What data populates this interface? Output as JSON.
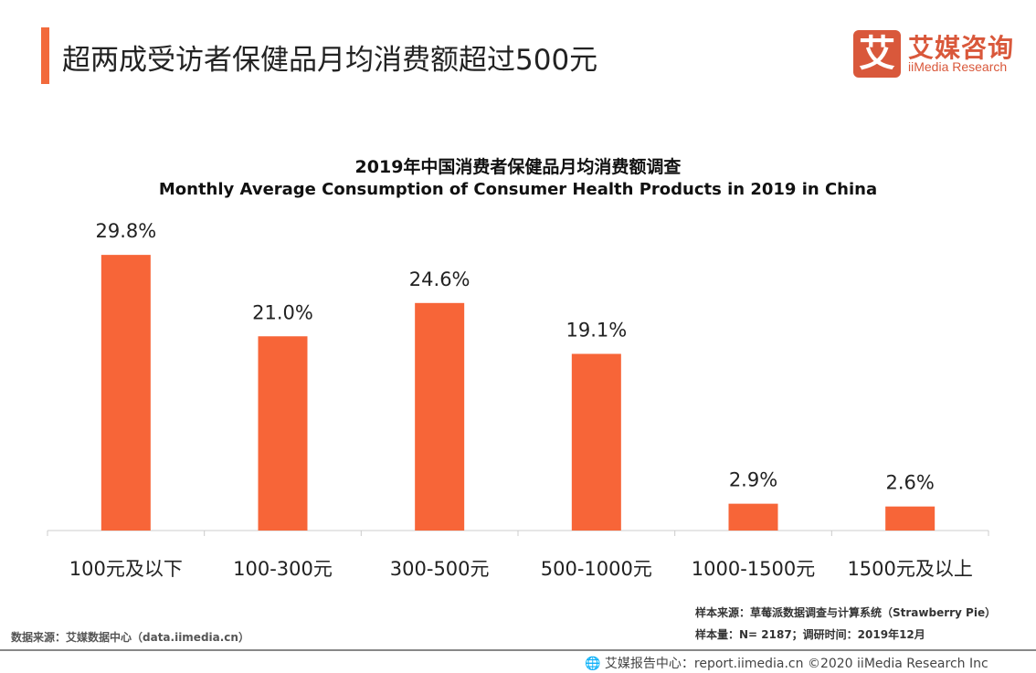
{
  "header": {
    "title": "超两成受访者保健品月均消费额超过500元",
    "accent_color": "#f26a3c"
  },
  "logo": {
    "mark": "艾",
    "name_cn": "艾媒咨询",
    "name_en": "iiMedia Research",
    "color": "#d9583b"
  },
  "chart_data": {
    "type": "bar",
    "title": "2019年中国消费者保健品月均消费额调查",
    "subtitle": "Monthly Average Consumption  of Consumer Health Products in 2019 in China",
    "categories": [
      "100元及以下",
      "100-300元",
      "300-500元",
      "500-1000元",
      "1000-1500元",
      "1500元及以上"
    ],
    "values": [
      29.8,
      21.0,
      24.6,
      19.1,
      2.9,
      2.6
    ],
    "labels": [
      "29.8%",
      "21.0%",
      "24.6%",
      "19.1%",
      "2.9%",
      "2.6%"
    ],
    "unit": "%",
    "ylim": [
      0,
      32
    ],
    "grid": false,
    "bar_color": "#f76538"
  },
  "notes": {
    "sample_source": "样本来源：草莓派数据调查与计算系统（Strawberry Pie）",
    "sample_size": "样本量：N= 2187；调研时间：2019年12月",
    "data_source": "数据来源：艾媒数据中心（data.iimedia.cn）"
  },
  "footer": {
    "icon": "globe-icon",
    "text": "艾媒报告中心：report.iimedia.cn ©2020  iiMedia Research  Inc"
  }
}
